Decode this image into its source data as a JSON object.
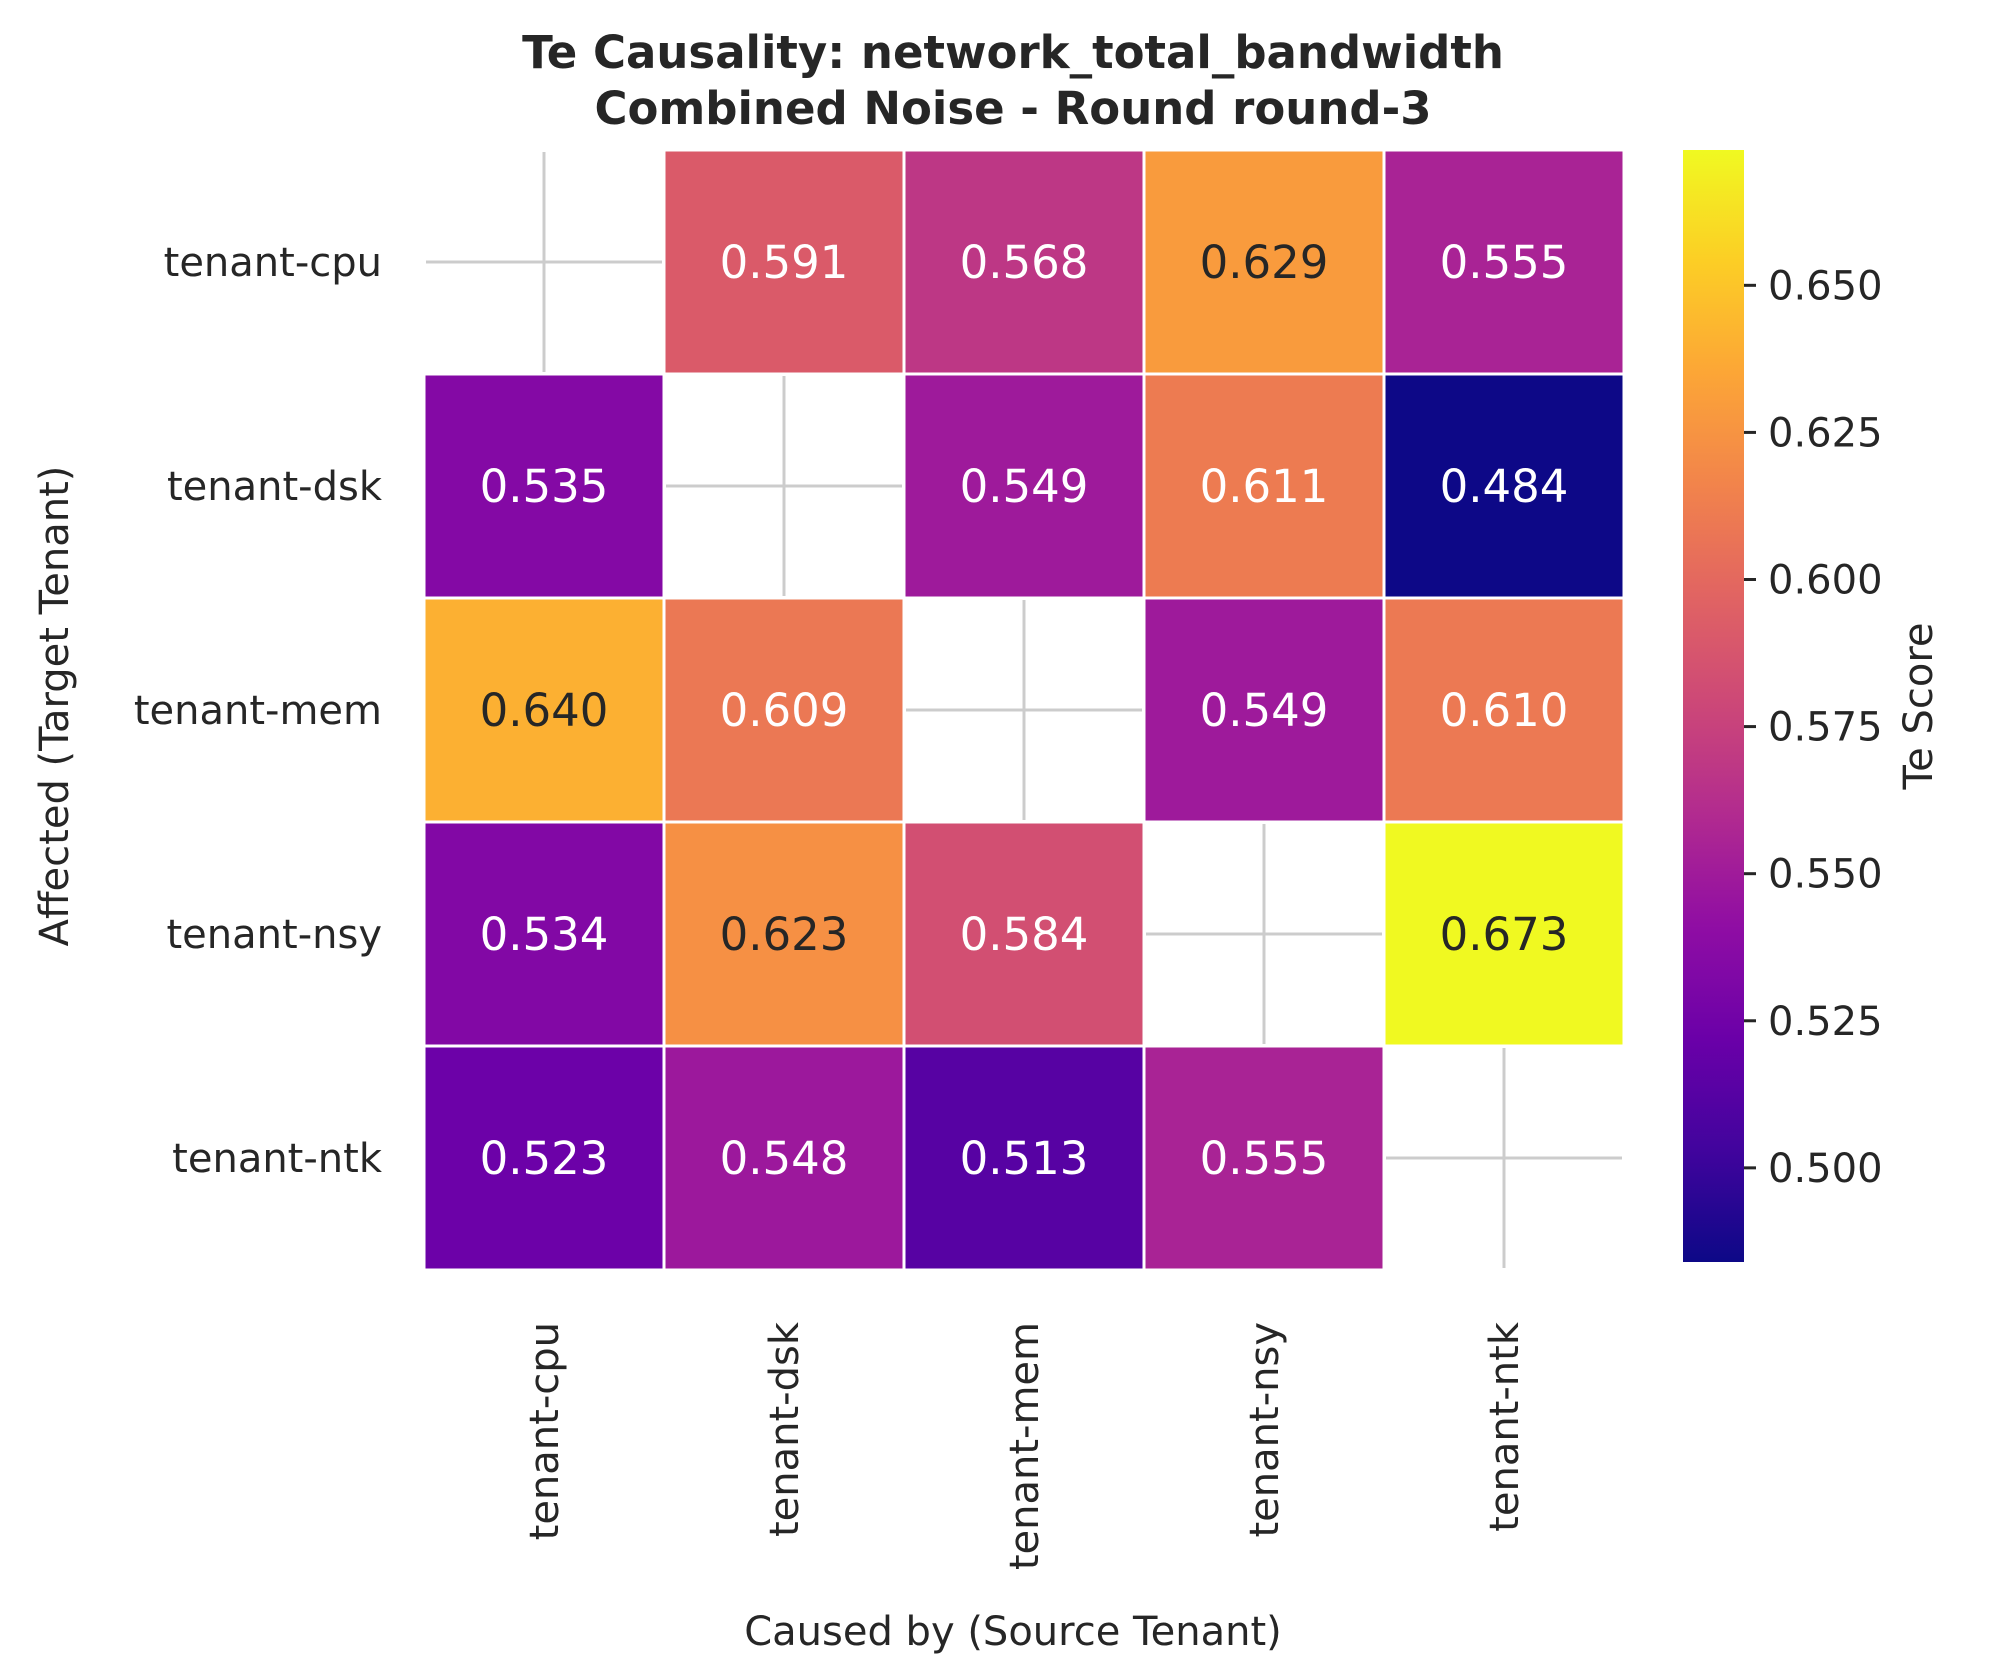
{
  "chart_data": {
    "type": "heatmap",
    "title": "Te Causality: network_total_bandwidth",
    "subtitle": "Combined Noise - Round round-3",
    "xlabel": "Caused by (Source Tenant)",
    "ylabel": "Affected (Target Tenant)",
    "x_categories": [
      "tenant-cpu",
      "tenant-dsk",
      "tenant-mem",
      "tenant-nsy",
      "tenant-ntk"
    ],
    "y_categories": [
      "tenant-cpu",
      "tenant-dsk",
      "tenant-mem",
      "tenant-nsy",
      "tenant-ntk"
    ],
    "values": [
      [
        null,
        0.591,
        0.568,
        0.629,
        0.555
      ],
      [
        0.535,
        null,
        0.549,
        0.611,
        0.484
      ],
      [
        0.64,
        0.609,
        null,
        0.549,
        0.61
      ],
      [
        0.534,
        0.623,
        0.584,
        null,
        0.673
      ],
      [
        0.523,
        0.548,
        0.513,
        0.555,
        null
      ]
    ],
    "value_format_decimals": 3,
    "diagonal_masked": true,
    "colorbar": {
      "label": "Te Score",
      "colormap": "plasma",
      "range": [
        0.484,
        0.673
      ],
      "ticks": [
        0.5,
        0.525,
        0.55,
        0.575,
        0.6,
        0.625,
        0.65
      ]
    }
  }
}
